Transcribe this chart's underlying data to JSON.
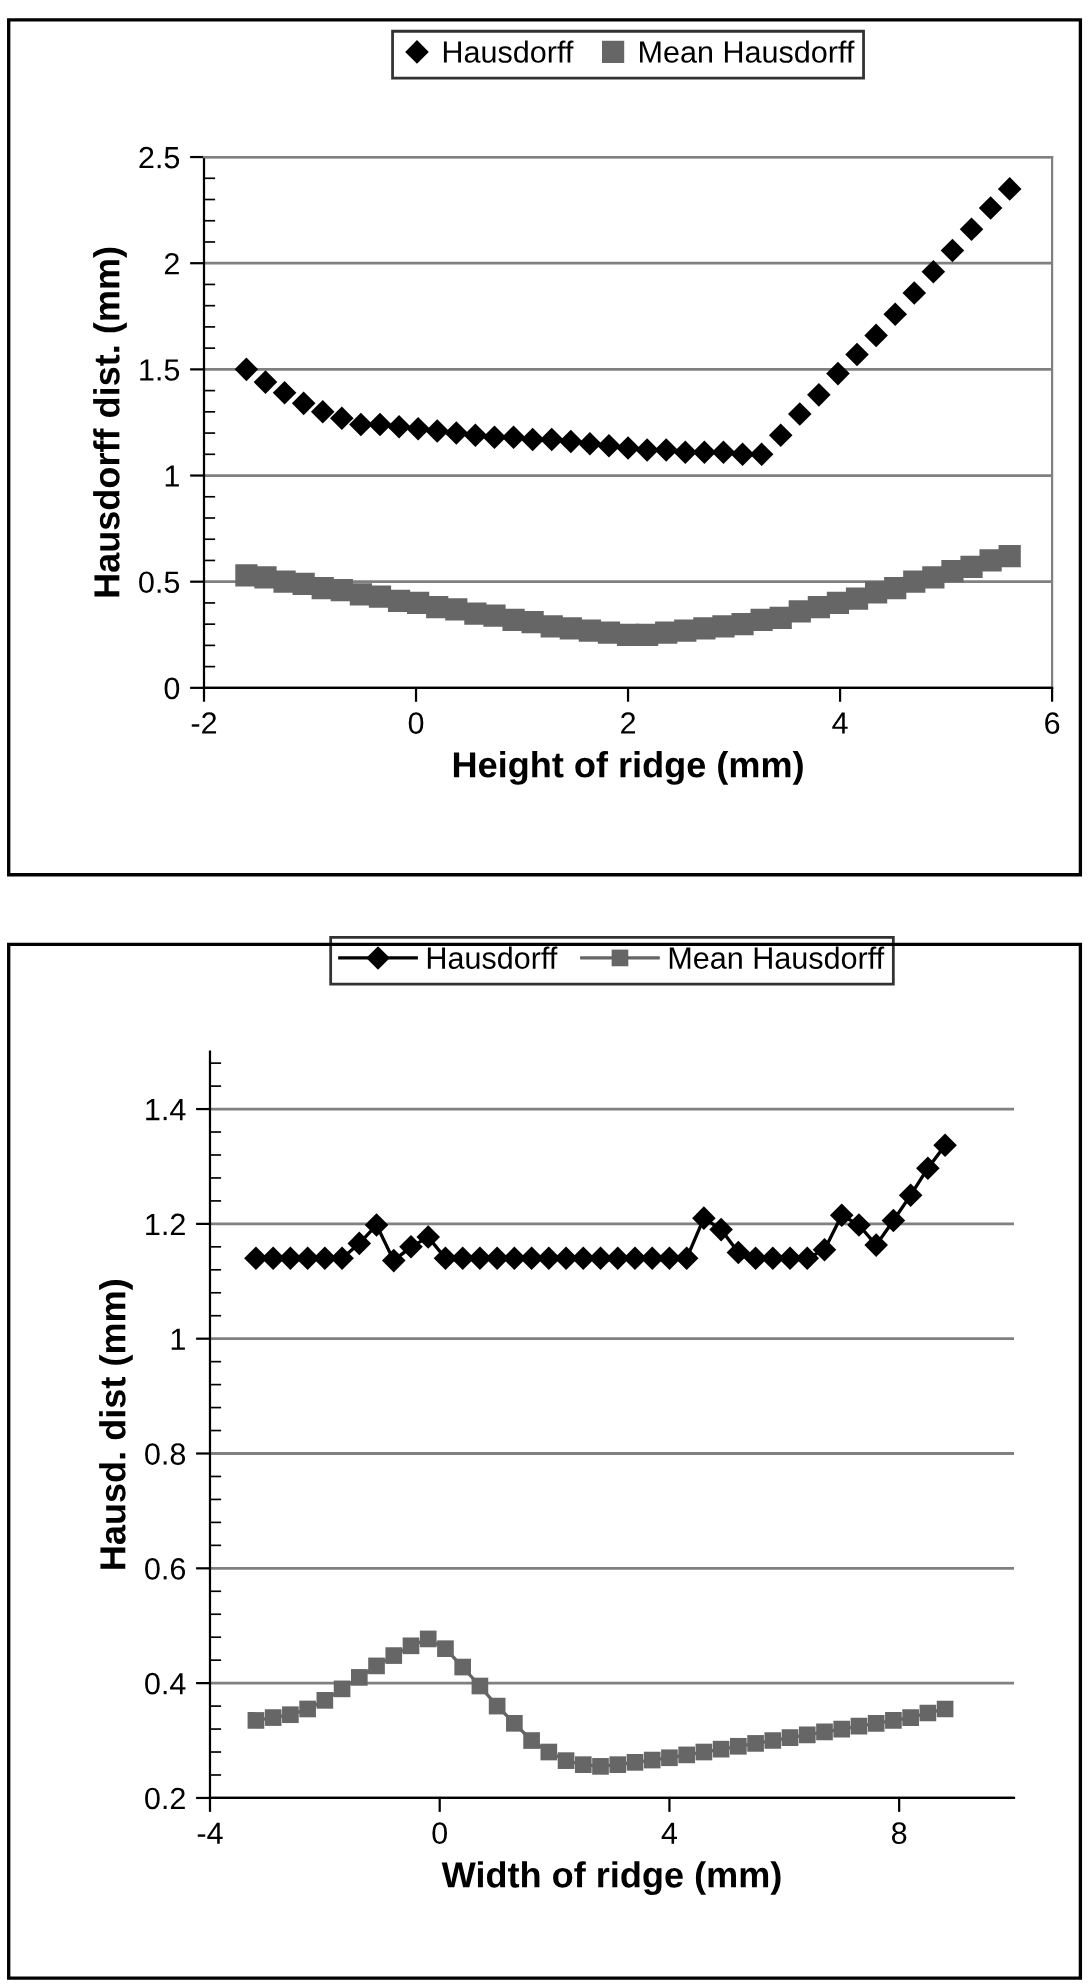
{
  "chart_data": [
    {
      "type": "scatter",
      "xlabel": "Height of ridge (mm)",
      "ylabel": "Hausdorff dist. (mm)",
      "xlim": [
        -2,
        6
      ],
      "xticks": [
        -2,
        0,
        2,
        4,
        6
      ],
      "ylim": [
        0,
        2.5
      ],
      "yticks": [
        0,
        0.5,
        1,
        1.5,
        2,
        2.5
      ],
      "grid": "y",
      "legend": "top",
      "x": [
        -1.6,
        -1.42,
        -1.24,
        -1.06,
        -0.88,
        -0.7,
        -0.52,
        -0.34,
        -0.16,
        0.02,
        0.2,
        0.38,
        0.56,
        0.74,
        0.92,
        1.1,
        1.28,
        1.46,
        1.64,
        1.82,
        2.0,
        2.18,
        2.36,
        2.54,
        2.72,
        2.9,
        3.08,
        3.26,
        3.44,
        3.62,
        3.8,
        3.98,
        4.16,
        4.34,
        4.52,
        4.7,
        4.88,
        5.06,
        5.24,
        5.42,
        5.6
      ],
      "series": [
        {
          "name": "Hausdorff",
          "color": "#000000",
          "marker": "diamond",
          "values": [
            1.5,
            1.44,
            1.39,
            1.34,
            1.3,
            1.27,
            1.24,
            1.24,
            1.23,
            1.22,
            1.21,
            1.2,
            1.19,
            1.18,
            1.18,
            1.17,
            1.17,
            1.16,
            1.15,
            1.14,
            1.13,
            1.12,
            1.12,
            1.11,
            1.11,
            1.11,
            1.1,
            1.1,
            1.19,
            1.29,
            1.38,
            1.48,
            1.57,
            1.66,
            1.76,
            1.86,
            1.96,
            2.06,
            2.16,
            2.26,
            2.35
          ]
        },
        {
          "name": "Mean Hausdorff",
          "color": "#666666",
          "marker": "square",
          "values": [
            0.53,
            0.52,
            0.5,
            0.49,
            0.47,
            0.46,
            0.44,
            0.43,
            0.41,
            0.4,
            0.38,
            0.37,
            0.35,
            0.34,
            0.32,
            0.31,
            0.29,
            0.28,
            0.27,
            0.26,
            0.25,
            0.25,
            0.26,
            0.27,
            0.28,
            0.29,
            0.3,
            0.32,
            0.33,
            0.36,
            0.38,
            0.4,
            0.42,
            0.45,
            0.47,
            0.5,
            0.52,
            0.55,
            0.57,
            0.6,
            0.62
          ]
        }
      ]
    },
    {
      "type": "line",
      "xlabel": "Width of ridge (mm)",
      "ylabel": "Hausd. dist (mm)",
      "xlim": [
        -4,
        10
      ],
      "xticks": [
        -4,
        0,
        4,
        8
      ],
      "ylim": [
        0.2,
        1.5
      ],
      "yticks": [
        0.2,
        0.4,
        0.6,
        0.8,
        1,
        1.2,
        1.4
      ],
      "grid": "y",
      "legend": "top",
      "x": [
        -3.2,
        -2.9,
        -2.6,
        -2.3,
        -2.0,
        -1.7,
        -1.4,
        -1.1,
        -0.8,
        -0.5,
        -0.2,
        0.1,
        0.4,
        0.7,
        1.0,
        1.3,
        1.6,
        1.9,
        2.2,
        2.5,
        2.8,
        3.1,
        3.4,
        3.7,
        4.0,
        4.3,
        4.6,
        4.9,
        5.2,
        5.5,
        5.8,
        6.1,
        6.4,
        6.7,
        7.0,
        7.3,
        7.6,
        7.9,
        8.2,
        8.5,
        8.8
      ],
      "series": [
        {
          "name": "Hausdorff",
          "color": "#000000",
          "marker": "diamond",
          "values": [
            1.14,
            1.14,
            1.14,
            1.14,
            1.14,
            1.14,
            1.166,
            1.198,
            1.136,
            1.16,
            1.177,
            1.14,
            1.14,
            1.14,
            1.14,
            1.14,
            1.14,
            1.14,
            1.14,
            1.14,
            1.14,
            1.14,
            1.14,
            1.14,
            1.14,
            1.14,
            1.21,
            1.19,
            1.15,
            1.14,
            1.14,
            1.14,
            1.14,
            1.155,
            1.215,
            1.198,
            1.163,
            1.206,
            1.25,
            1.297,
            1.337
          ]
        },
        {
          "name": "Mean Hausdorff",
          "color": "#666666",
          "marker": "square",
          "values": [
            0.335,
            0.34,
            0.345,
            0.355,
            0.37,
            0.39,
            0.41,
            0.43,
            0.448,
            0.465,
            0.477,
            0.46,
            0.428,
            0.395,
            0.36,
            0.33,
            0.3,
            0.28,
            0.265,
            0.258,
            0.255,
            0.258,
            0.262,
            0.266,
            0.27,
            0.275,
            0.28,
            0.285,
            0.29,
            0.295,
            0.3,
            0.305,
            0.31,
            0.315,
            0.32,
            0.325,
            0.33,
            0.335,
            0.34,
            0.348,
            0.355
          ]
        }
      ]
    }
  ]
}
